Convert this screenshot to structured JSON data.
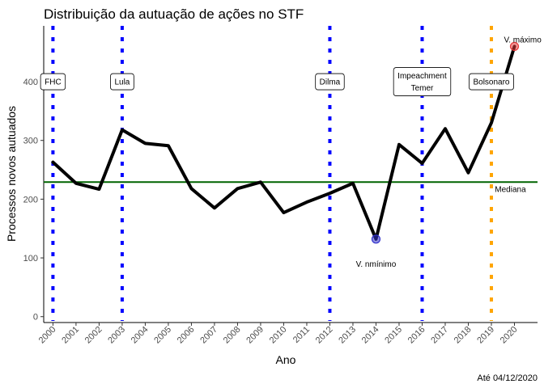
{
  "chart_data": {
    "type": "line",
    "title": "Distribuição da autuação de ações no STF",
    "xlabel": "Ano",
    "ylabel": "Processos novos autuados",
    "caption": "Até 04/12/2020",
    "x": [
      2000,
      2001,
      2002,
      2003,
      2004,
      2005,
      2006,
      2007,
      2008,
      2009,
      2010,
      2011,
      2012,
      2013,
      2014,
      2015,
      2016,
      2017,
      2018,
      2019,
      2020
    ],
    "values": [
      263,
      227,
      217,
      318,
      295,
      291,
      218,
      185,
      218,
      229,
      177,
      195,
      210,
      227,
      132,
      293,
      261,
      320,
      245,
      330,
      460
    ],
    "xlim": [
      1999.6,
      2021.0
    ],
    "ylim": [
      -10,
      495
    ],
    "yticks": [
      0,
      100,
      200,
      300,
      400
    ],
    "median": {
      "value": 229,
      "label": "Mediana",
      "color": "#006400"
    },
    "min_point": {
      "x": 2014,
      "y": 132,
      "label": "V. nmínimo",
      "color": "#3333cc"
    },
    "max_point": {
      "x": 2020,
      "y": 460,
      "label": "V. máximo",
      "color": "#e83b3b"
    },
    "presidents": [
      {
        "x": 2000,
        "label": [
          "FHC"
        ],
        "color": "#0000ff"
      },
      {
        "x": 2003,
        "label": [
          "Lula"
        ],
        "color": "#0000ff"
      },
      {
        "x": 2012,
        "label": [
          "Dilma"
        ],
        "color": "#0000ff"
      },
      {
        "x": 2016,
        "label": [
          "Impeachment",
          "Temer"
        ],
        "color": "#0000ff"
      },
      {
        "x": 2019,
        "label": [
          "Bolsonaro"
        ],
        "color": "#ffa500"
      }
    ],
    "president_label_y": 400,
    "grid": false,
    "line_color": "#000000"
  }
}
